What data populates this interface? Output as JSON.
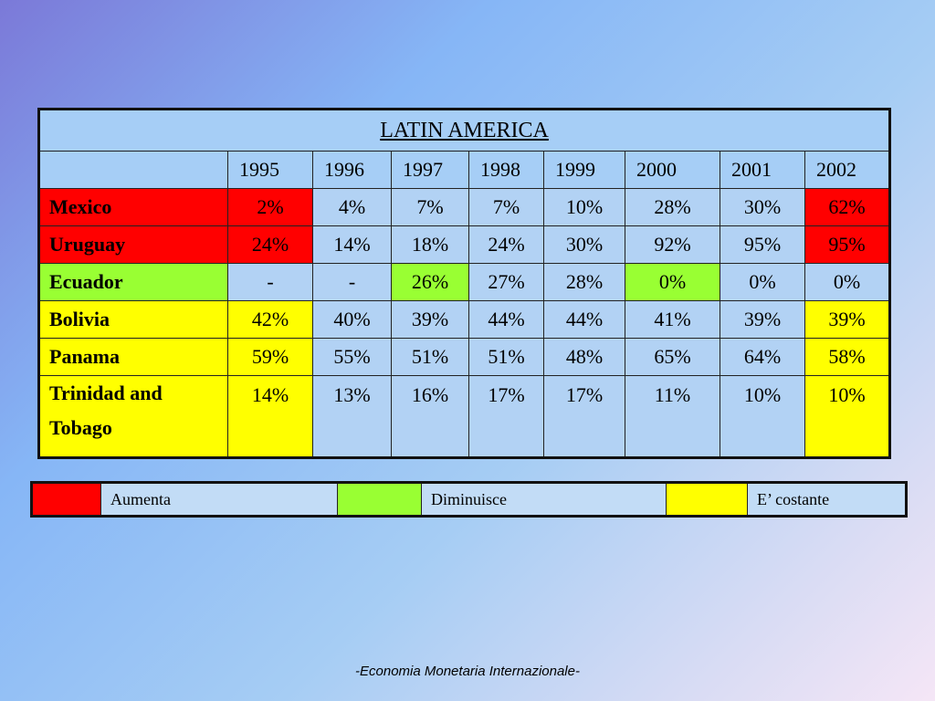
{
  "table": {
    "title": "LATIN AMERICA",
    "years": [
      "1995",
      "1996",
      "1997",
      "1998",
      "1999",
      "2000",
      "2001",
      "2002"
    ],
    "rows": [
      {
        "country": "Mexico",
        "values": [
          "2%",
          "4%",
          "7%",
          "7%",
          "10%",
          "28%",
          "30%",
          "62%"
        ]
      },
      {
        "country": "Uruguay",
        "values": [
          "24%",
          "14%",
          "18%",
          "24%",
          "30%",
          "92%",
          "95%",
          "95%"
        ]
      },
      {
        "country": "Ecuador",
        "values": [
          "-",
          "-",
          "26%",
          "27%",
          "28%",
          "0%",
          "0%",
          "0%"
        ]
      },
      {
        "country": "Bolivia",
        "values": [
          "42%",
          "40%",
          "39%",
          "44%",
          "44%",
          "41%",
          "39%",
          "39%"
        ]
      },
      {
        "country": "Panama",
        "values": [
          "59%",
          "55%",
          "51%",
          "51%",
          "48%",
          "65%",
          "64%",
          "58%"
        ]
      },
      {
        "country": "Trinidad and Tobago",
        "values": [
          "14%",
          "13%",
          "16%",
          "17%",
          "17%",
          "11%",
          "10%",
          "10%"
        ]
      }
    ]
  },
  "legend": {
    "items": [
      {
        "label": "Aumenta",
        "color": "#ff0000"
      },
      {
        "label": "Diminuisce",
        "color": "#99ff33"
      },
      {
        "label": "E’ costante",
        "color": "#ffff00"
      }
    ]
  },
  "footer": {
    "text": "-Economia Monetaria Internazionale-"
  }
}
